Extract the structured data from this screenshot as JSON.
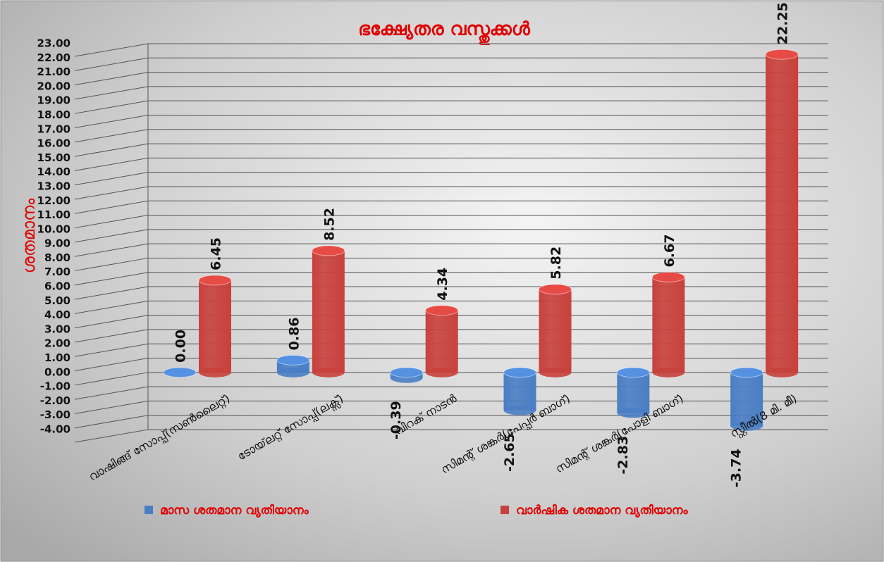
{
  "chart_data": {
    "type": "bar3d",
    "title": "ഭക്ഷ്യേതര വസ്തുക്കൾ",
    "y_label": "ശതമാനം",
    "categories": [
      "വാഷിങ്ങ് സോപ്പ്(സൺലൈറ്റ്)",
      "ടോയ്‌ലറ്റ് സോപ്പ്(ലക്സ്)",
      "വിറക് നാടൻ",
      "സിമന്റ് ശങ്കർ(പേപ്പർ ബാഗ്)",
      "സിമന്റ് ശങ്കർ(പോളി ബാഗ്)",
      "സ്റ്റീൽ(8 മി. മീ)"
    ],
    "series": [
      {
        "name": "മാസ ശതമാന വ്യതിയാനം",
        "color": "#4a7ec4",
        "values": [
          0,
          0.86,
          -0.39,
          -2.65,
          -2.83,
          -3.74
        ],
        "value_labels": [
          "0.00",
          "0.86",
          "-0.39",
          "-2.65",
          "-2.83",
          "-3.74"
        ]
      },
      {
        "name": "വാർഷിക ശതമാന വ്യതിയാനം",
        "color": "#c8413c",
        "values": [
          6.45,
          8.52,
          4.34,
          5.82,
          6.67,
          22.25
        ],
        "value_labels": [
          "6.45",
          "8.52",
          "4.34",
          "5.82",
          "6.67",
          "22.25"
        ]
      }
    ],
    "ylim": [
      -4,
      23
    ],
    "yticks": [
      {
        "value": -4,
        "label": "-4.00"
      },
      {
        "value": -3,
        "label": "-3.00"
      },
      {
        "value": -2,
        "label": "-2.00"
      },
      {
        "value": -1,
        "label": "-1.00"
      },
      {
        "value": 0,
        "label": "0.00"
      },
      {
        "value": 1,
        "label": "1.00"
      },
      {
        "value": 2,
        "label": "2.00"
      },
      {
        "value": 3,
        "label": "3.00"
      },
      {
        "value": 4,
        "label": "4.00"
      },
      {
        "value": 5,
        "label": "5.00"
      },
      {
        "value": 6,
        "label": "6.00"
      },
      {
        "value": 7,
        "label": "7.00"
      },
      {
        "value": 8,
        "label": "8.00"
      },
      {
        "value": 9,
        "label": "9.00"
      },
      {
        "value": 10,
        "label": "10.00"
      },
      {
        "value": 11,
        "label": "11.00"
      },
      {
        "value": 12,
        "label": "12.00"
      },
      {
        "value": 13,
        "label": "13.00"
      },
      {
        "value": 14,
        "label": "14.00"
      },
      {
        "value": 15,
        "label": "15.00"
      },
      {
        "value": 16,
        "label": "16.00"
      },
      {
        "value": 17,
        "label": "17.00"
      },
      {
        "value": 18,
        "label": "18.00"
      },
      {
        "value": 19,
        "label": "19.00"
      },
      {
        "value": 20,
        "label": "20.00"
      },
      {
        "value": 21,
        "label": "21.00"
      },
      {
        "value": 22,
        "label": "22.00"
      },
      {
        "value": 23,
        "label": "23.00"
      }
    ],
    "grid": true
  }
}
